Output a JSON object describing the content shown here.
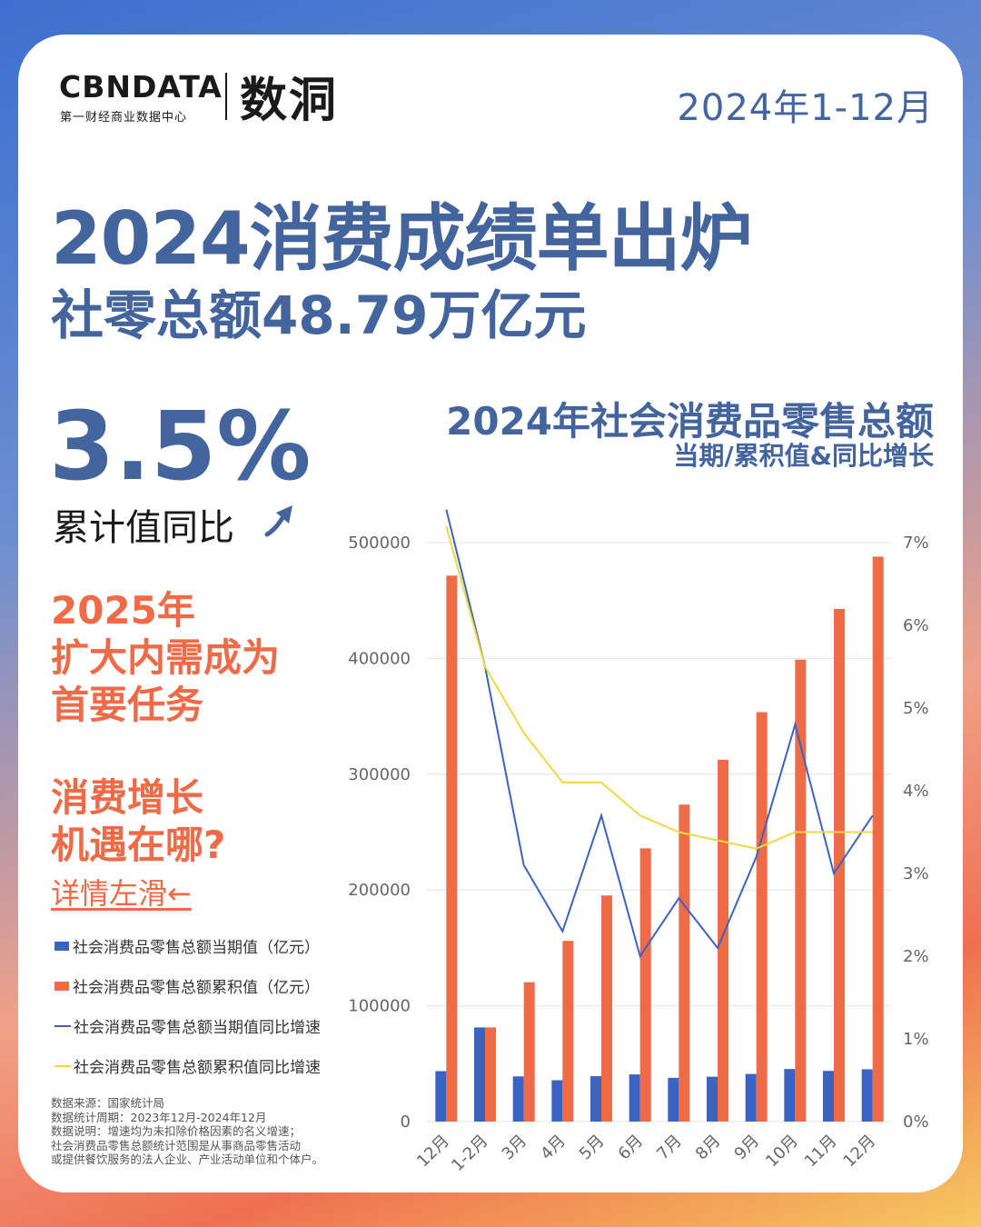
{
  "brand": {
    "logo_en": "CBNDATA",
    "logo_en_sub": "第一财经商业数据中心",
    "logo_cn": "数洞"
  },
  "period": "2024年1-12月",
  "headline": "2024消费成绩单出炉",
  "subheadline": "社零总额48.79万亿元",
  "highlight": {
    "value": "3.5%",
    "label": "累计值同比"
  },
  "section_2025": [
    "2025年",
    "扩大内需成为",
    "首要任务"
  ],
  "section_growth": [
    "消费增长",
    "机遇在哪?"
  ],
  "swipe_hint": "详情左滑←",
  "legend": [
    {
      "label": "社会消费品零售总额当期值（亿元）",
      "kind": "bar",
      "color": "#3a63c4"
    },
    {
      "label": "社会消费品零售总额累积值（亿元）",
      "kind": "bar",
      "color": "#ef6a46"
    },
    {
      "label": "社会消费品零售总额当期值同比增速",
      "kind": "line",
      "color": "#3a63c4"
    },
    {
      "label": "社会消费品零售总额累积值同比增速",
      "kind": "line",
      "color": "#f2d840"
    }
  ],
  "notes": [
    "数据来源：国家统计局",
    "数据统计周期：2023年12月-2024年12月",
    "数据说明：增速均为未扣除价格因素的名义增速；",
    "社会消费品零售总额统计范围是从事商品零售活动",
    "或提供餐饮服务的法人企业、产业活动单位和个体户。"
  ],
  "chart_data": {
    "type": "bar",
    "title": "2024年社会消费品零售总额",
    "subtitle": "当期/累积值&同比增长",
    "categories": [
      "12月",
      "1-2月",
      "3月",
      "4月",
      "5月",
      "6月",
      "7月",
      "8月",
      "9月",
      "10月",
      "11月",
      "12月"
    ],
    "series": [
      {
        "name": "社会消费品零售总额当期值（亿元）",
        "type": "bar",
        "axis": "left",
        "color": "#3a63c4",
        "values": [
          43550,
          81307,
          39020,
          35699,
          39211,
          40732,
          37757,
          38726,
          41112,
          45396,
          43763,
          45172
        ]
      },
      {
        "name": "社会消费品零售总额累积值（亿元）",
        "type": "bar",
        "axis": "left",
        "color": "#ef6a46",
        "values": [
          471495,
          81307,
          120327,
          156026,
          195237,
          235969,
          273726,
          312452,
          353564,
          398960,
          442723,
          487895
        ]
      },
      {
        "name": "社会消费品零售总额当期值同比增速",
        "type": "line",
        "axis": "right",
        "color": "#3a63c4",
        "values": [
          7.4,
          5.5,
          3.1,
          2.3,
          3.7,
          2.0,
          2.7,
          2.1,
          3.2,
          4.8,
          3.0,
          3.7
        ]
      },
      {
        "name": "社会消费品零售总额累积值同比增速",
        "type": "line",
        "axis": "right",
        "color": "#f2d840",
        "values": [
          7.2,
          5.5,
          4.7,
          4.1,
          4.1,
          3.7,
          3.5,
          3.4,
          3.3,
          3.5,
          3.5,
          3.5
        ]
      }
    ],
    "y_left": {
      "min": 0,
      "max": 500000,
      "ticks": [
        "0",
        "100000",
        "200000",
        "300000",
        "400000",
        "500000"
      ]
    },
    "y_right": {
      "min": 0,
      "max": 7,
      "ticks": [
        "0%",
        "1%",
        "2%",
        "3%",
        "4%",
        "5%",
        "6%",
        "7%"
      ]
    },
    "grid": true,
    "legend_position": "left"
  }
}
